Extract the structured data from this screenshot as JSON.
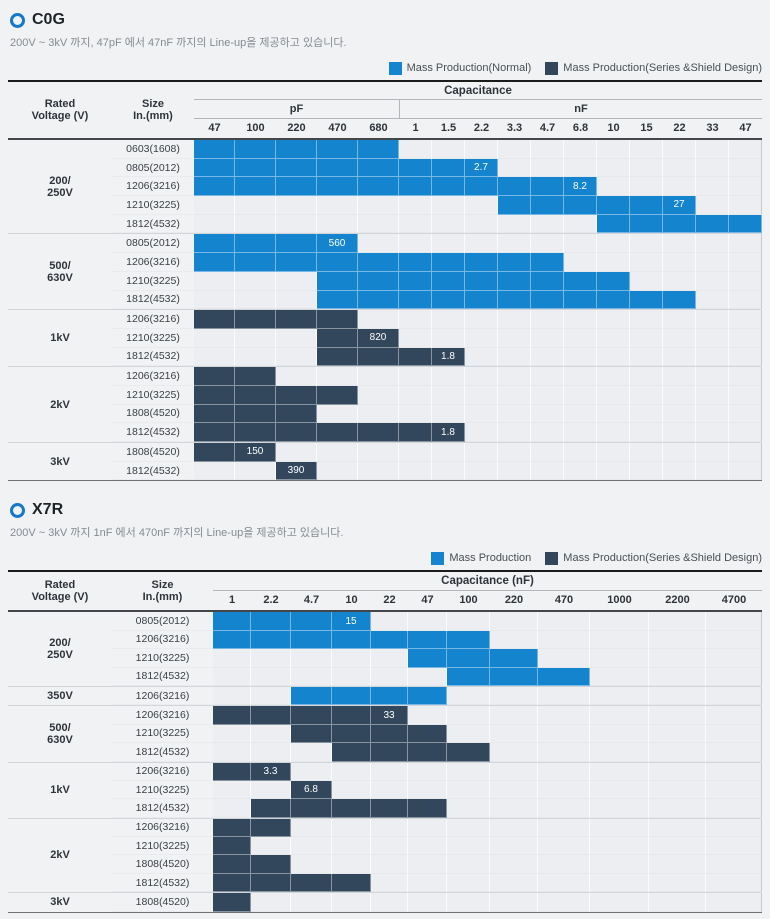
{
  "colors": {
    "blue": "#1484cf",
    "navy": "#33475c"
  },
  "chart_data": [
    {
      "type": "heatmap",
      "title": "C0G",
      "subtitle": "200V ~ 3kV 까지, 47pF 에서 47nF 까지의 Line-up을 제공하고 있습니다.",
      "legend": [
        {
          "label": "Mass Production(Normal)",
          "color": "blue"
        },
        {
          "label": "Mass Production(Series &Shield Design)",
          "color": "navy"
        }
      ],
      "header": {
        "rated_voltage": "Rated\nVoltage (V)",
        "size": "Size\nIn.(mm)",
        "capacitance_title": "Capacitance",
        "unit_groups": [
          {
            "label": "pF",
            "span": 5
          },
          {
            "label": "nF",
            "span": 11
          }
        ],
        "columns": [
          "47",
          "100",
          "220",
          "470",
          "680",
          "1",
          "1.5",
          "2.2",
          "3.3",
          "4.7",
          "6.8",
          "10",
          "15",
          "22",
          "33",
          "47"
        ]
      },
      "groups": [
        {
          "voltage": "200/\n250V",
          "rows": [
            {
              "size": "0603(1608)",
              "bar": {
                "color": "blue",
                "start": 1,
                "end": 5,
                "label": ""
              }
            },
            {
              "size": "0805(2012)",
              "bar": {
                "color": "blue",
                "start": 1,
                "end": 8,
                "label": "2.7"
              }
            },
            {
              "size": "1206(3216)",
              "bar": {
                "color": "blue",
                "start": 1,
                "end": 11,
                "label": "8.2"
              }
            },
            {
              "size": "1210(3225)",
              "bar": {
                "color": "blue",
                "start": 9,
                "end": 14,
                "label": "27"
              }
            },
            {
              "size": "1812(4532)",
              "bar": {
                "color": "blue",
                "start": 12,
                "end": 16,
                "label": ""
              }
            }
          ]
        },
        {
          "voltage": "500/\n630V",
          "rows": [
            {
              "size": "0805(2012)",
              "bar": {
                "color": "blue",
                "start": 1,
                "end": 4,
                "label": "560"
              }
            },
            {
              "size": "1206(3216)",
              "bar": {
                "color": "blue",
                "start": 1,
                "end": 10,
                "label": ""
              }
            },
            {
              "size": "1210(3225)",
              "bar": {
                "color": "blue",
                "start": 4,
                "end": 12,
                "label": ""
              }
            },
            {
              "size": "1812(4532)",
              "bar": {
                "color": "blue",
                "start": 4,
                "end": 14,
                "label": ""
              }
            }
          ]
        },
        {
          "voltage": "1kV",
          "rows": [
            {
              "size": "1206(3216)",
              "bar": {
                "color": "navy",
                "start": 1,
                "end": 4,
                "label": ""
              }
            },
            {
              "size": "1210(3225)",
              "bar": {
                "color": "navy",
                "start": 4,
                "end": 5,
                "label": "820"
              }
            },
            {
              "size": "1812(4532)",
              "bar": {
                "color": "navy",
                "start": 4,
                "end": 7,
                "label": "1.8"
              }
            }
          ]
        },
        {
          "voltage": "2kV",
          "rows": [
            {
              "size": "1206(3216)",
              "bar": {
                "color": "navy",
                "start": 1,
                "end": 2,
                "label": ""
              }
            },
            {
              "size": "1210(3225)",
              "bar": {
                "color": "navy",
                "start": 1,
                "end": 4,
                "label": ""
              }
            },
            {
              "size": "1808(4520)",
              "bar": {
                "color": "navy",
                "start": 1,
                "end": 3,
                "label": ""
              }
            },
            {
              "size": "1812(4532)",
              "bar": {
                "color": "navy",
                "start": 1,
                "end": 7,
                "label": "1.8"
              }
            }
          ]
        },
        {
          "voltage": "3kV",
          "rows": [
            {
              "size": "1808(4520)",
              "bar": {
                "color": "navy",
                "start": 1,
                "end": 2,
                "label": "150"
              }
            },
            {
              "size": "1812(4532)",
              "bar": {
                "color": "navy",
                "start": 3,
                "end": 3,
                "label": "390"
              }
            }
          ]
        }
      ]
    },
    {
      "type": "heatmap",
      "title": "X7R",
      "subtitle": "200V ~ 3kV 까지 1nF 에서 470nF 까지의 Line-up을 제공하고 있습니다.",
      "legend": [
        {
          "label": "Mass Production",
          "color": "blue"
        },
        {
          "label": "Mass Production(Series &Shield Design)",
          "color": "navy"
        }
      ],
      "header": {
        "rated_voltage": "Rated\nVoltage (V)",
        "size": "Size\nIn.(mm)",
        "capacitance_title": "Capacitance (nF)",
        "unit_groups": [],
        "columns": [
          "1",
          "2.2",
          "4.7",
          "10",
          "22",
          "47",
          "100",
          "220",
          "470",
          "1000",
          "2200",
          "4700"
        ]
      },
      "groups": [
        {
          "voltage": "200/\n250V",
          "rows": [
            {
              "size": "0805(2012)",
              "bar": {
                "color": "blue",
                "start": 1,
                "end": 4,
                "label": "15"
              }
            },
            {
              "size": "1206(3216)",
              "bar": {
                "color": "blue",
                "start": 1,
                "end": 7,
                "label": ""
              }
            },
            {
              "size": "1210(3225)",
              "bar": {
                "color": "blue",
                "start": 6,
                "end": 8,
                "label": ""
              }
            },
            {
              "size": "1812(4532)",
              "bar": {
                "color": "blue",
                "start": 7,
                "end": 9,
                "label": ""
              }
            }
          ]
        },
        {
          "voltage": "350V",
          "rows": [
            {
              "size": "1206(3216)",
              "bar": {
                "color": "blue",
                "start": 3,
                "end": 6,
                "label": ""
              }
            }
          ]
        },
        {
          "voltage": "500/\n630V",
          "rows": [
            {
              "size": "1206(3216)",
              "bar": {
                "color": "navy",
                "start": 1,
                "end": 5,
                "label": "33"
              }
            },
            {
              "size": "1210(3225)",
              "bar": {
                "color": "navy",
                "start": 3,
                "end": 6,
                "label": ""
              }
            },
            {
              "size": "1812(4532)",
              "bar": {
                "color": "navy",
                "start": 4,
                "end": 7,
                "label": ""
              }
            }
          ]
        },
        {
          "voltage": "1kV",
          "rows": [
            {
              "size": "1206(3216)",
              "bar": {
                "color": "navy",
                "start": 1,
                "end": 2,
                "label": "3.3"
              }
            },
            {
              "size": "1210(3225)",
              "bar": {
                "color": "navy",
                "start": 3,
                "end": 3,
                "label": "6.8"
              }
            },
            {
              "size": "1812(4532)",
              "bar": {
                "color": "navy",
                "start": 2,
                "end": 6,
                "label": ""
              }
            }
          ]
        },
        {
          "voltage": "2kV",
          "rows": [
            {
              "size": "1206(3216)",
              "bar": {
                "color": "navy",
                "start": 1,
                "end": 2,
                "label": ""
              }
            },
            {
              "size": "1210(3225)",
              "bar": {
                "color": "navy",
                "start": 1,
                "end": 1,
                "label": ""
              }
            },
            {
              "size": "1808(4520)",
              "bar": {
                "color": "navy",
                "start": 1,
                "end": 2,
                "label": ""
              }
            },
            {
              "size": "1812(4532)",
              "bar": {
                "color": "navy",
                "start": 1,
                "end": 4,
                "label": ""
              }
            }
          ]
        },
        {
          "voltage": "3kV",
          "rows": [
            {
              "size": "1808(4520)",
              "bar": {
                "color": "navy",
                "start": 1,
                "end": 1,
                "label": ""
              }
            }
          ]
        }
      ]
    }
  ]
}
